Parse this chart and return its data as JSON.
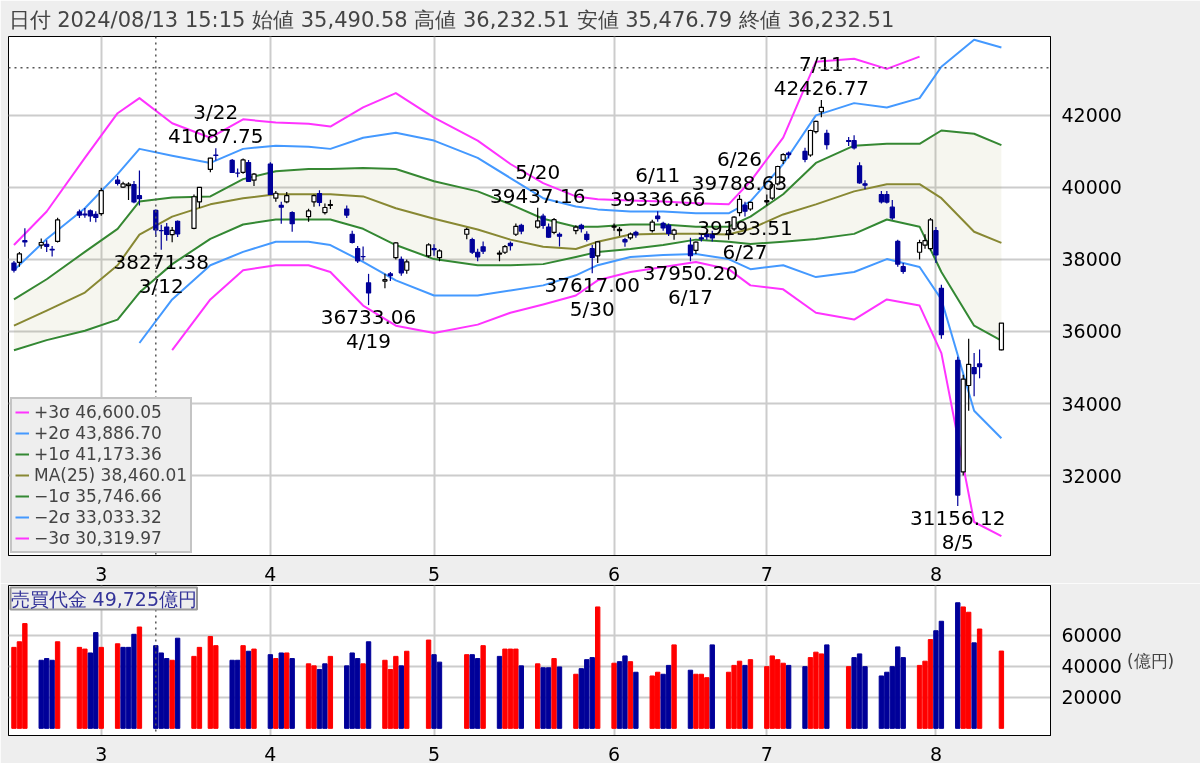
{
  "chart_data": [
    {
      "type": "candlestick",
      "title": "日付 2024/08/13 15:15 始値 35,490.58 高値 36,232.51 安値 35,476.79 終値 36,232.51",
      "x": [
        "2024-02-14",
        "2024-02-15",
        "2024-02-16",
        "2024-02-19",
        "2024-02-20",
        "2024-02-21",
        "2024-02-22",
        "2024-02-26",
        "2024-02-27",
        "2024-02-28",
        "2024-02-29",
        "2024-03-01",
        "2024-03-04",
        "2024-03-05",
        "2024-03-06",
        "2024-03-07",
        "2024-03-08",
        "2024-03-11",
        "2024-03-12",
        "2024-03-13",
        "2024-03-14",
        "2024-03-15",
        "2024-03-18",
        "2024-03-19",
        "2024-03-21",
        "2024-03-22",
        "2024-03-25",
        "2024-03-26",
        "2024-03-27",
        "2024-03-28",
        "2024-03-29",
        "2024-04-01",
        "2024-04-02",
        "2024-04-03",
        "2024-04-04",
        "2024-04-05",
        "2024-04-08",
        "2024-04-09",
        "2024-04-10",
        "2024-04-11",
        "2024-04-12",
        "2024-04-15",
        "2024-04-16",
        "2024-04-17",
        "2024-04-18",
        "2024-04-19",
        "2024-04-22",
        "2024-04-23",
        "2024-04-24",
        "2024-04-25",
        "2024-04-26",
        "2024-04-30",
        "2024-05-01",
        "2024-05-02",
        "2024-05-07",
        "2024-05-08",
        "2024-05-09",
        "2024-05-10",
        "2024-05-13",
        "2024-05-14",
        "2024-05-15",
        "2024-05-16",
        "2024-05-17",
        "2024-05-20",
        "2024-05-21",
        "2024-05-22",
        "2024-05-23",
        "2024-05-24",
        "2024-05-27",
        "2024-05-28",
        "2024-05-29",
        "2024-05-30",
        "2024-05-31",
        "2024-06-03",
        "2024-06-04",
        "2024-06-05",
        "2024-06-06",
        "2024-06-07",
        "2024-06-10",
        "2024-06-11",
        "2024-06-12",
        "2024-06-13",
        "2024-06-14",
        "2024-06-17",
        "2024-06-18",
        "2024-06-19",
        "2024-06-20",
        "2024-06-21",
        "2024-06-24",
        "2024-06-25",
        "2024-06-26",
        "2024-06-27",
        "2024-06-28",
        "2024-07-01",
        "2024-07-02",
        "2024-07-03",
        "2024-07-04",
        "2024-07-05",
        "2024-07-08",
        "2024-07-09",
        "2024-07-10",
        "2024-07-11",
        "2024-07-12",
        "2024-07-16",
        "2024-07-17",
        "2024-07-18",
        "2024-07-19",
        "2024-07-22",
        "2024-07-23",
        "2024-07-24",
        "2024-07-25",
        "2024-07-26",
        "2024-07-29",
        "2024-07-30",
        "2024-07-31",
        "2024-08-01",
        "2024-08-02",
        "2024-08-05",
        "2024-08-06",
        "2024-08-07",
        "2024-08-08",
        "2024-08-09",
        "2024-08-13"
      ],
      "ohlc": [
        [
          37900,
          37960,
          37640,
          37703
        ],
        [
          37920,
          38210,
          37800,
          38157
        ],
        [
          38520,
          38865,
          38350,
          38487
        ],
        [
          38400,
          38580,
          38300,
          38470
        ],
        [
          38420,
          38530,
          38210,
          38363
        ],
        [
          38280,
          38370,
          38080,
          38262
        ],
        [
          38500,
          39156,
          38470,
          39098
        ],
        [
          39320,
          39388,
          39150,
          39233
        ],
        [
          39260,
          39426,
          39160,
          39239
        ],
        [
          39350,
          39390,
          39050,
          39208
        ],
        [
          39250,
          39340,
          39030,
          39166
        ],
        [
          39270,
          39990,
          39210,
          39910
        ],
        [
          40200,
          40314,
          40050,
          40109
        ],
        [
          40010,
          40160,
          39990,
          40097
        ],
        [
          40050,
          40140,
          39650,
          40090
        ],
        [
          40080,
          40180,
          39560,
          39598
        ],
        [
          39770,
          40472,
          39500,
          39688
        ],
        [
          39360,
          39390,
          38620,
          38820
        ],
        [
          38800,
          38960,
          38271.38,
          38797
        ],
        [
          38900,
          39015,
          38520,
          38695
        ],
        [
          38690,
          38900,
          38480,
          38807
        ],
        [
          39060,
          39080,
          38620,
          38707
        ],
        [
          38860,
          39800,
          38840,
          39740
        ],
        [
          39600,
          40010,
          39430,
          40003
        ],
        [
          40500,
          40823,
          40420,
          40815
        ],
        [
          40900,
          41087.75,
          40750,
          40888
        ],
        [
          40750,
          40790,
          40400,
          40414
        ],
        [
          40400,
          40526,
          40280,
          40398
        ],
        [
          40420,
          40805,
          40380,
          40762
        ],
        [
          40690,
          40760,
          40150,
          40168
        ],
        [
          40200,
          40400,
          40040,
          40369
        ],
        [
          40650,
          40700,
          39790,
          39803
        ],
        [
          39700,
          39900,
          39600,
          39838
        ],
        [
          39500,
          39600,
          38990,
          39451
        ],
        [
          39600,
          39870,
          39560,
          39773
        ],
        [
          39300,
          39340,
          38770,
          38992
        ],
        [
          39190,
          39410,
          39050,
          39347
        ],
        [
          39600,
          39800,
          39460,
          39773
        ],
        [
          39830,
          39920,
          39480,
          39581
        ],
        [
          39300,
          39550,
          39250,
          39442
        ],
        [
          39500,
          39660,
          39400,
          39523
        ],
        [
          39400,
          39500,
          39150,
          39232
        ],
        [
          38700,
          38800,
          38440,
          38471
        ],
        [
          38300,
          38370,
          37900,
          37961
        ],
        [
          38080,
          38360,
          37970,
          38079
        ],
        [
          37350,
          37600,
          36733.06,
          37068
        ],
        [
          37400,
          37600,
          37200,
          37438
        ],
        [
          37600,
          37650,
          37400,
          37552
        ],
        [
          38050,
          38480,
          38000,
          38460
        ],
        [
          38000,
          38080,
          37550,
          37628
        ],
        [
          37700,
          38000,
          37600,
          37934
        ],
        [
          38100,
          38450,
          38050,
          38405
        ],
        [
          38300,
          38420,
          38100,
          38274
        ],
        [
          38050,
          38280,
          37950,
          38236
        ],
        [
          38700,
          38880,
          38560,
          38835
        ],
        [
          38550,
          38600,
          38150,
          38202
        ],
        [
          38200,
          38300,
          37950,
          38073
        ],
        [
          38350,
          38500,
          38150,
          38229
        ],
        [
          38150,
          38250,
          37950,
          38179
        ],
        [
          38200,
          38400,
          38150,
          38356
        ],
        [
          38450,
          38500,
          38250,
          38385
        ],
        [
          38700,
          39000,
          38650,
          38920
        ],
        [
          38950,
          38990,
          38700,
          38787
        ],
        [
          38900,
          39437.16,
          38860,
          39069
        ],
        [
          39200,
          39270,
          38850,
          38946
        ],
        [
          38900,
          39000,
          38600,
          38617
        ],
        [
          38750,
          39150,
          38700,
          39103
        ],
        [
          38700,
          38750,
          38360,
          38646
        ],
        [
          38800,
          38950,
          38700,
          38900
        ],
        [
          38950,
          38990,
          38750,
          38855
        ],
        [
          38700,
          38780,
          38500,
          38556
        ],
        [
          38300,
          38400,
          37617.0,
          38054
        ],
        [
          38100,
          38500,
          37900,
          38487
        ],
        [
          38900,
          39000,
          38800,
          38923
        ],
        [
          38800,
          38900,
          38650,
          38837
        ],
        [
          38550,
          38600,
          38350,
          38490
        ],
        [
          38600,
          38750,
          38550,
          38703
        ],
        [
          38750,
          38800,
          38600,
          38683
        ],
        [
          38800,
          39100,
          38750,
          39038
        ],
        [
          39200,
          39336.66,
          39050,
          39134
        ],
        [
          39000,
          39050,
          38800,
          38876
        ],
        [
          38950,
          39000,
          38650,
          38720
        ],
        [
          38700,
          38850,
          38550,
          38814
        ],
        [
          38400,
          38600,
          37950.2,
          38102
        ],
        [
          38250,
          38500,
          38150,
          38482
        ],
        [
          38600,
          38700,
          38500,
          38570
        ],
        [
          38700,
          38800,
          38550,
          38633
        ],
        [
          38700,
          38800,
          38500,
          38596
        ],
        [
          38700,
          38850,
          38550,
          38804
        ],
        [
          38850,
          39200,
          38800,
          39173
        ],
        [
          39300,
          39788.63,
          39200,
          39667
        ],
        [
          39500,
          39600,
          39193.51,
          39341
        ],
        [
          39400,
          39600,
          39350,
          39583
        ],
        [
          39600,
          39800,
          39500,
          39631
        ],
        [
          39700,
          40100,
          39650,
          40074
        ],
        [
          40100,
          40600,
          40050,
          40580
        ],
        [
          40750,
          40950,
          40650,
          40913
        ],
        [
          40950,
          41000,
          40800,
          40912
        ],
        [
          41000,
          41100,
          40700,
          40780
        ],
        [
          40900,
          41600,
          40850,
          41580
        ],
        [
          41550,
          41850,
          41500,
          41831
        ],
        [
          42100,
          42426.77,
          41950,
          42224
        ],
        [
          41500,
          41600,
          41050,
          41190
        ],
        [
          41300,
          41400,
          41150,
          41275
        ],
        [
          41300,
          41450,
          41050,
          41097
        ],
        [
          40600,
          40700,
          40100,
          40126
        ],
        [
          40100,
          40200,
          39950,
          40063
        ],
        [
          39800,
          39900,
          39550,
          39599
        ],
        [
          39800,
          39900,
          39550,
          39594
        ],
        [
          39450,
          39650,
          39100,
          39154
        ],
        [
          38500,
          38550,
          37800,
          37869
        ],
        [
          37800,
          37900,
          37600,
          37667
        ],
        [
          38200,
          38550,
          38000,
          38468
        ],
        [
          38400,
          38700,
          38300,
          38525
        ],
        [
          38300,
          39150,
          38250,
          39101
        ],
        [
          38800,
          38900,
          37900,
          38126
        ],
        [
          37200,
          37300,
          35800,
          35909
        ],
        [
          35200,
          35300,
          31156.12,
          31458
        ],
        [
          32100,
          34800,
          32000,
          34675
        ],
        [
          34500,
          35800,
          33800,
          35089
        ],
        [
          35000,
          35400,
          34200,
          34831
        ],
        [
          35100,
          35500,
          34700,
          35025
        ],
        [
          35490.58,
          36232.51,
          35476.79,
          36232.51
        ]
      ],
      "series": [
        {
          "type": "line",
          "name": "+3σ 46,600.05",
          "color": "#ff33ff",
          "x": [
            "2024-02-14",
            "2024-02-20",
            "2024-02-27",
            "2024-03-04",
            "2024-03-08",
            "2024-03-14",
            "2024-03-21",
            "2024-03-27",
            "2024-04-02",
            "2024-04-08",
            "2024-04-12",
            "2024-04-18",
            "2024-04-24",
            "2024-05-01",
            "2024-05-09",
            "2024-05-15",
            "2024-05-21",
            "2024-05-27",
            "2024-05-31",
            "2024-06-06",
            "2024-06-12",
            "2024-06-18",
            "2024-06-24",
            "2024-06-28",
            "2024-07-04",
            "2024-07-10",
            "2024-07-17",
            "2024-07-23",
            "2024-07-29"
          ],
          "values": [
            38400,
            39330,
            40820,
            42060,
            42480,
            41780,
            41380,
            41890,
            41800,
            41770,
            41690,
            42220,
            42620,
            41940,
            41300,
            40650,
            40120,
            39750,
            39670,
            39640,
            39610,
            39560,
            39530,
            40170,
            41380,
            43490,
            43570,
            43290,
            43630
          ]
        },
        {
          "type": "line",
          "name": "+2σ 43,886.70",
          "color": "#4499ff",
          "x": [
            "2024-02-14",
            "2024-02-20",
            "2024-02-27",
            "2024-03-04",
            "2024-03-08",
            "2024-03-14",
            "2024-03-21",
            "2024-03-27",
            "2024-04-02",
            "2024-04-08",
            "2024-04-12",
            "2024-04-18",
            "2024-04-24",
            "2024-05-01",
            "2024-05-09",
            "2024-05-15",
            "2024-05-21",
            "2024-05-27",
            "2024-05-31",
            "2024-06-06",
            "2024-06-12",
            "2024-06-18",
            "2024-06-24",
            "2024-06-28",
            "2024-07-04",
            "2024-07-10",
            "2024-07-17",
            "2024-07-23",
            "2024-07-29",
            "2024-08-02",
            "2024-08-08",
            "2024-08-13"
          ],
          "values": [
            37700,
            38570,
            39420,
            40370,
            41070,
            40880,
            40680,
            41070,
            41160,
            41130,
            41070,
            41380,
            41520,
            41300,
            40820,
            40260,
            39700,
            39470,
            39390,
            39330,
            39330,
            39280,
            39280,
            39610,
            40650,
            42000,
            42340,
            42220,
            42480,
            43350,
            44100,
            43886.7
          ]
        },
        {
          "type": "line",
          "name": "+1σ 41,173.36",
          "color": "#338833",
          "x": [
            "2024-02-14",
            "2024-02-20",
            "2024-02-27",
            "2024-03-04",
            "2024-03-08",
            "2024-03-14",
            "2024-03-21",
            "2024-03-27",
            "2024-04-02",
            "2024-04-08",
            "2024-04-12",
            "2024-04-18",
            "2024-04-24",
            "2024-05-01",
            "2024-05-09",
            "2024-05-15",
            "2024-05-21",
            "2024-05-27",
            "2024-05-31",
            "2024-06-06",
            "2024-06-12",
            "2024-06-18",
            "2024-06-24",
            "2024-06-28",
            "2024-07-04",
            "2024-07-10",
            "2024-07-17",
            "2024-07-23",
            "2024-07-29",
            "2024-08-02",
            "2024-08-08",
            "2024-08-13"
          ],
          "values": [
            36890,
            37450,
            38210,
            38850,
            39610,
            39720,
            39750,
            40230,
            40450,
            40510,
            40510,
            40540,
            40510,
            40170,
            39890,
            39530,
            39130,
            38910,
            38910,
            38970,
            38970,
            38910,
            38910,
            39190,
            39810,
            40680,
            41160,
            41210,
            41210,
            41580,
            41490,
            41173.36
          ]
        },
        {
          "type": "line",
          "name": "MA(25) 38,460.01",
          "color": "#888833",
          "x": [
            "2024-02-14",
            "2024-02-20",
            "2024-02-27",
            "2024-03-04",
            "2024-03-08",
            "2024-03-14",
            "2024-03-21",
            "2024-03-27",
            "2024-04-02",
            "2024-04-08",
            "2024-04-12",
            "2024-04-18",
            "2024-04-24",
            "2024-05-01",
            "2024-05-09",
            "2024-05-15",
            "2024-05-21",
            "2024-05-27",
            "2024-05-31",
            "2024-06-06",
            "2024-06-12",
            "2024-06-18",
            "2024-06-24",
            "2024-06-28",
            "2024-07-04",
            "2024-07-10",
            "2024-07-17",
            "2024-07-23",
            "2024-07-29",
            "2024-08-02",
            "2024-08-08",
            "2024-08-13"
          ],
          "values": [
            36160,
            36580,
            37080,
            37840,
            38690,
            39190,
            39530,
            39700,
            39810,
            39810,
            39810,
            39750,
            39420,
            39130,
            38830,
            38550,
            38350,
            38290,
            38490,
            38690,
            38710,
            38710,
            38690,
            38850,
            39250,
            39530,
            39890,
            40090,
            40090,
            39700,
            38770,
            38460.01
          ],
          "upper": [
            36890,
            37450,
            38210,
            38850,
            39610,
            39720,
            39750,
            40230,
            40450,
            40510,
            40510,
            40540,
            40510,
            40170,
            39890,
            39530,
            39130,
            38910,
            38910,
            38970,
            38970,
            38910,
            38910,
            39190,
            39810,
            40680,
            41160,
            41210,
            41210,
            41580,
            41490,
            41173.36
          ],
          "lower": [
            35480,
            35760,
            36020,
            36330,
            37080,
            37870,
            38570,
            38970,
            39110,
            39110,
            39110,
            38850,
            38400,
            38010,
            37840,
            37840,
            37870,
            38070,
            38210,
            38290,
            38400,
            38550,
            38490,
            38430,
            38490,
            38570,
            38710,
            39110,
            38910,
            37650,
            36160,
            35746.66
          ]
        },
        {
          "type": "line",
          "name": "−1σ 35,746.66",
          "color": "#338833",
          "x": [
            "2024-02-14",
            "2024-02-20",
            "2024-02-27",
            "2024-03-04",
            "2024-03-08",
            "2024-03-14",
            "2024-03-21",
            "2024-03-27",
            "2024-04-02",
            "2024-04-08",
            "2024-04-12",
            "2024-04-18",
            "2024-04-24",
            "2024-05-01",
            "2024-05-09",
            "2024-05-15",
            "2024-05-21",
            "2024-05-27",
            "2024-05-31",
            "2024-06-06",
            "2024-06-12",
            "2024-06-18",
            "2024-06-24",
            "2024-06-28",
            "2024-07-04",
            "2024-07-10",
            "2024-07-17",
            "2024-07-23",
            "2024-07-29",
            "2024-08-02",
            "2024-08-08",
            "2024-08-13"
          ],
          "values": [
            35480,
            35760,
            36020,
            36330,
            37080,
            37870,
            38570,
            38970,
            39110,
            39110,
            39110,
            38850,
            38400,
            38010,
            37840,
            37840,
            37870,
            38070,
            38210,
            38290,
            38400,
            38550,
            38490,
            38430,
            38490,
            38570,
            38710,
            39110,
            38910,
            37650,
            36160,
            35746.66
          ]
        },
        {
          "type": "line",
          "name": "−2σ 33,033.32",
          "color": "#4499ff",
          "x": [
            "2024-03-08",
            "2024-03-14",
            "2024-03-21",
            "2024-03-27",
            "2024-04-02",
            "2024-04-08",
            "2024-04-12",
            "2024-04-18",
            "2024-04-24",
            "2024-05-01",
            "2024-05-09",
            "2024-05-15",
            "2024-05-21",
            "2024-05-27",
            "2024-05-31",
            "2024-06-06",
            "2024-06-12",
            "2024-06-18",
            "2024-06-24",
            "2024-06-28",
            "2024-07-04",
            "2024-07-10",
            "2024-07-17",
            "2024-07-23",
            "2024-07-29",
            "2024-08-02",
            "2024-08-08",
            "2024-08-13"
          ],
          "values": [
            35680,
            36890,
            37840,
            38210,
            38490,
            38490,
            38400,
            37930,
            37420,
            37000,
            37000,
            37140,
            37280,
            37560,
            37840,
            38070,
            38120,
            38150,
            38010,
            37730,
            37840,
            37510,
            37650,
            38010,
            37790,
            36890,
            33800,
            33033.32
          ]
        },
        {
          "type": "line",
          "name": "−3σ 30,319.97",
          "color": "#ff33ff",
          "x": [
            "2024-03-14",
            "2024-03-21",
            "2024-03-27",
            "2024-04-02",
            "2024-04-08",
            "2024-04-12",
            "2024-04-18",
            "2024-04-24",
            "2024-05-01",
            "2024-05-09",
            "2024-05-15",
            "2024-05-21",
            "2024-05-27",
            "2024-05-31",
            "2024-06-06",
            "2024-06-12",
            "2024-06-18",
            "2024-06-24",
            "2024-06-28",
            "2024-07-04",
            "2024-07-10",
            "2024-07-17",
            "2024-07-23",
            "2024-07-29",
            "2024-08-02",
            "2024-08-08",
            "2024-08-13"
          ],
          "values": [
            35480,
            36890,
            37700,
            37840,
            37840,
            37650,
            36720,
            36160,
            35960,
            36190,
            36520,
            36750,
            37000,
            37420,
            37650,
            37790,
            37930,
            37730,
            37280,
            37170,
            36520,
            36330,
            36890,
            36720,
            35400,
            30710,
            30319.97
          ]
        }
      ],
      "xlim": [
        "2024-02-13",
        "2024-08-22"
      ],
      "xticks": [
        {
          "value": "2024-03-01",
          "label": "3"
        },
        {
          "value": "2024-04-01",
          "label": "4"
        },
        {
          "value": "2024-05-01",
          "label": "5"
        },
        {
          "value": "2024-06-03",
          "label": "6"
        },
        {
          "value": "2024-07-01",
          "label": "7"
        },
        {
          "value": "2024-08-01",
          "label": "8"
        }
      ],
      "ylim": [
        29780,
        44190
      ],
      "yticks": [
        32000,
        34000,
        36000,
        38000,
        40000,
        42000
      ],
      "grid": true,
      "legend": "bottom left",
      "ref_lines": [
        {
          "axis": "x",
          "value": "2024-03-11",
          "line_style": "dotted",
          "color": "#555555"
        },
        {
          "axis": "y",
          "value": 43320,
          "line_style": "dotted",
          "color": "#555555"
        }
      ],
      "annotations": [
        {
          "text": "3/22\n41087.75",
          "x": "2024-03-22",
          "y": 41087.75
        },
        {
          "text": "38271.38\n3/12",
          "x": "2024-03-12",
          "y": 38271.38
        },
        {
          "text": "36733.06\n4/19",
          "x": "2024-04-19",
          "y": 36733.06
        },
        {
          "text": "5/20\n39437.16",
          "x": "2024-05-20",
          "y": 39437.16
        },
        {
          "text": "37617.00\n5/30",
          "x": "2024-05-30",
          "y": 37617.0
        },
        {
          "text": "6/11\n39336.66",
          "x": "2024-06-11",
          "y": 39336.66
        },
        {
          "text": "37950.20\n6/17",
          "x": "2024-06-17",
          "y": 37950.2
        },
        {
          "text": "6/26\n39788.63",
          "x": "2024-06-26",
          "y": 39788.63
        },
        {
          "text": "39193.51\n6/27",
          "x": "2024-06-27",
          "y": 39193.51
        },
        {
          "text": "7/11\n42426.77",
          "x": "2024-07-11",
          "y": 42426.77
        },
        {
          "text": "31156.12\n8/5",
          "x": "2024-08-05",
          "y": 31156.12
        }
      ]
    },
    {
      "type": "bar",
      "x": [
        "2024-02-14",
        "2024-02-15",
        "2024-02-16",
        "2024-02-19",
        "2024-02-20",
        "2024-02-21",
        "2024-02-22",
        "2024-02-26",
        "2024-02-27",
        "2024-02-28",
        "2024-02-29",
        "2024-03-01",
        "2024-03-04",
        "2024-03-05",
        "2024-03-06",
        "2024-03-07",
        "2024-03-08",
        "2024-03-11",
        "2024-03-12",
        "2024-03-13",
        "2024-03-14",
        "2024-03-15",
        "2024-03-18",
        "2024-03-19",
        "2024-03-21",
        "2024-03-22",
        "2024-03-25",
        "2024-03-26",
        "2024-03-27",
        "2024-03-28",
        "2024-03-29",
        "2024-04-01",
        "2024-04-02",
        "2024-04-03",
        "2024-04-04",
        "2024-04-05",
        "2024-04-08",
        "2024-04-09",
        "2024-04-10",
        "2024-04-11",
        "2024-04-12",
        "2024-04-15",
        "2024-04-16",
        "2024-04-17",
        "2024-04-18",
        "2024-04-19",
        "2024-04-22",
        "2024-04-23",
        "2024-04-24",
        "2024-04-25",
        "2024-04-26",
        "2024-04-30",
        "2024-05-01",
        "2024-05-02",
        "2024-05-07",
        "2024-05-08",
        "2024-05-09",
        "2024-05-10",
        "2024-05-13",
        "2024-05-14",
        "2024-05-15",
        "2024-05-16",
        "2024-05-17",
        "2024-05-20",
        "2024-05-21",
        "2024-05-22",
        "2024-05-23",
        "2024-05-24",
        "2024-05-27",
        "2024-05-28",
        "2024-05-29",
        "2024-05-30",
        "2024-05-31",
        "2024-06-03",
        "2024-06-04",
        "2024-06-05",
        "2024-06-06",
        "2024-06-07",
        "2024-06-10",
        "2024-06-11",
        "2024-06-12",
        "2024-06-13",
        "2024-06-14",
        "2024-06-17",
        "2024-06-18",
        "2024-06-19",
        "2024-06-20",
        "2024-06-21",
        "2024-06-24",
        "2024-06-25",
        "2024-06-26",
        "2024-06-27",
        "2024-06-28",
        "2024-07-01",
        "2024-07-02",
        "2024-07-03",
        "2024-07-04",
        "2024-07-05",
        "2024-07-08",
        "2024-07-09",
        "2024-07-10",
        "2024-07-11",
        "2024-07-12",
        "2024-07-16",
        "2024-07-17",
        "2024-07-18",
        "2024-07-19",
        "2024-07-22",
        "2024-07-23",
        "2024-07-24",
        "2024-07-25",
        "2024-07-26",
        "2024-07-29",
        "2024-07-30",
        "2024-07-31",
        "2024-08-01",
        "2024-08-02",
        "2024-08-05",
        "2024-08-06",
        "2024-08-07",
        "2024-08-08",
        "2024-08-09",
        "2024-08-13"
      ],
      "values": [
        52100,
        55700,
        67400,
        43800,
        44900,
        43800,
        55700,
        52100,
        51000,
        48500,
        61600,
        52100,
        54400,
        52100,
        52100,
        60500,
        65200,
        53200,
        48500,
        44900,
        43800,
        58000,
        46300,
        52100,
        59100,
        53200,
        43800,
        43800,
        53200,
        49600,
        51000,
        47400,
        44900,
        48500,
        48500,
        44900,
        41500,
        40200,
        37900,
        41500,
        46300,
        40200,
        48500,
        44900,
        41500,
        55700,
        43800,
        37900,
        46300,
        40200,
        49600,
        56800,
        47400,
        42600,
        47400,
        47400,
        44900,
        53200,
        46300,
        51000,
        51000,
        51000,
        40200,
        41500,
        39000,
        39000,
        44900,
        39500,
        34800,
        38400,
        44200,
        45500,
        78100,
        41900,
        42900,
        46600,
        42900,
        36100,
        33700,
        36100,
        34800,
        40500,
        53700,
        37400,
        34800,
        34800,
        32600,
        53700,
        36100,
        40500,
        43200,
        40500,
        44200,
        39700,
        46600,
        44200,
        41900,
        40500,
        39700,
        45500,
        49000,
        47900,
        53700,
        39700,
        45500,
        47900,
        39700,
        33700,
        36100,
        39700,
        52400,
        45500,
        40500,
        43200,
        57100,
        62800,
        68900,
        80800,
        78100,
        74700,
        55000,
        63900,
        49725
      ],
      "colors": [
        "#ff0000",
        "#ff0000",
        "#ff0000",
        "#000099",
        "#000099",
        "#000099",
        "#ff0000",
        "#ff0000",
        "#ff0000",
        "#000099",
        "#000099",
        "#ff0000",
        "#ff0000",
        "#000099",
        "#000099",
        "#000099",
        "#ff0000",
        "#000099",
        "#000099",
        "#000099",
        "#ff0000",
        "#000099",
        "#ff0000",
        "#ff0000",
        "#ff0000",
        "#ff0000",
        "#000099",
        "#000099",
        "#ff0000",
        "#000099",
        "#ff0000",
        "#000099",
        "#ff0000",
        "#000099",
        "#ff0000",
        "#000099",
        "#ff0000",
        "#ff0000",
        "#000099",
        "#000099",
        "#ff0000",
        "#000099",
        "#000099",
        "#000099",
        "#ff0000",
        "#000099",
        "#ff0000",
        "#ff0000",
        "#ff0000",
        "#000099",
        "#ff0000",
        "#ff0000",
        "#000099",
        "#000099",
        "#ff0000",
        "#000099",
        "#000099",
        "#ff0000",
        "#000099",
        "#ff0000",
        "#ff0000",
        "#ff0000",
        "#000099",
        "#ff0000",
        "#000099",
        "#000099",
        "#ff0000",
        "#000099",
        "#ff0000",
        "#000099",
        "#000099",
        "#000099",
        "#ff0000",
        "#ff0000",
        "#000099",
        "#000099",
        "#ff0000",
        "#000099",
        "#ff0000",
        "#ff0000",
        "#000099",
        "#000099",
        "#ff0000",
        "#000099",
        "#ff0000",
        "#ff0000",
        "#ff0000",
        "#000099",
        "#ff0000",
        "#ff0000",
        "#ff0000",
        "#000099",
        "#ff0000",
        "#ff0000",
        "#ff0000",
        "#ff0000",
        "#ff0000",
        "#000099",
        "#000099",
        "#ff0000",
        "#ff0000",
        "#ff0000",
        "#000099",
        "#ff0000",
        "#000099",
        "#000099",
        "#000099",
        "#000099",
        "#000099",
        "#000099",
        "#000099",
        "#000099",
        "#ff0000",
        "#ff0000",
        "#ff0000",
        "#000099",
        "#000099",
        "#000099",
        "#ff0000",
        "#ff0000",
        "#000099",
        "#ff0000",
        "#ff0000"
      ],
      "xlim": [
        "2024-02-13",
        "2024-08-22"
      ],
      "xticks": [
        {
          "value": "2024-03-01",
          "label": "3"
        },
        {
          "value": "2024-04-01",
          "label": "4"
        },
        {
          "value": "2024-05-01",
          "label": "5"
        },
        {
          "value": "2024-06-03",
          "label": "6"
        },
        {
          "value": "2024-07-01",
          "label": "7"
        },
        {
          "value": "2024-08-01",
          "label": "8"
        }
      ],
      "ylim": [
        -4600,
        91900
      ],
      "yticks": [
        20000,
        40000,
        60000
      ],
      "ylabel": "(億円)",
      "grid": true,
      "ref_lines": [
        {
          "axis": "x",
          "value": "2024-03-11",
          "line_style": "dotted",
          "color": "#555555"
        }
      ],
      "annotations": [
        "売買代金 49,725億円"
      ]
    }
  ]
}
